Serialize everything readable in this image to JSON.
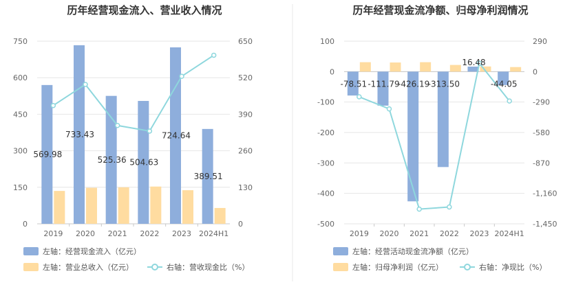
{
  "colors": {
    "bar_primary": "#8eaedc",
    "bar_secondary": "#ffdca0",
    "line": "#8ed7dd",
    "grid": "#e6e6e6",
    "divider": "#e8e8e8"
  },
  "chart_data": [
    {
      "type": "bar",
      "title": "历年经营现金流入、营业收入情况",
      "categories": [
        "2019",
        "2020",
        "2021",
        "2022",
        "2023",
        "2024H1"
      ],
      "left_axis": {
        "min": 0,
        "max": 750,
        "ticks": [
          "0",
          "150",
          "300",
          "450",
          "600",
          "750"
        ]
      },
      "right_axis": {
        "min": 0,
        "max": 650,
        "ticks": [
          "0",
          "130",
          "260",
          "390",
          "520",
          "650"
        ]
      },
      "series": [
        {
          "name": "左轴：经营现金流入（亿元）",
          "kind": "bar",
          "axis": "left",
          "color": "#8eaedc",
          "values": [
            569.98,
            733.43,
            525.36,
            504.63,
            724.64,
            389.51
          ],
          "labels": [
            "569.98",
            "733.43",
            "525.36",
            "504.63",
            "724.64",
            "389.51"
          ]
        },
        {
          "name": "左轴：营业总收入（亿元）",
          "kind": "bar",
          "axis": "left",
          "color": "#ffdca0",
          "values": [
            135,
            148,
            150,
            153,
            138,
            65
          ]
        },
        {
          "name": "右轴：营收现金比（%）",
          "kind": "line",
          "axis": "right",
          "color": "#8ed7dd",
          "values": [
            421,
            496,
            350,
            330,
            525,
            600
          ]
        }
      ],
      "legend": [
        "左轴：经营现金流入（亿元）",
        "左轴：营业总收入（亿元）",
        "右轴：营收现金比（%）"
      ]
    },
    {
      "type": "bar",
      "title": "历年经营现金流净额、归母净利润情况",
      "categories": [
        "2019",
        "2020",
        "2021",
        "2022",
        "2023",
        "2024H1"
      ],
      "left_axis": {
        "min": -500,
        "max": 100,
        "ticks": [
          "-500",
          "-400",
          "-300",
          "-200",
          "-100",
          "0",
          "100"
        ]
      },
      "right_axis": {
        "min": -1450,
        "max": 290,
        "ticks": [
          "-1,450",
          "-1,160",
          "-870",
          "-580",
          "-290",
          "0",
          "290"
        ]
      },
      "series": [
        {
          "name": "左轴：经营活动现金流净额（亿元）",
          "kind": "bar",
          "axis": "left",
          "color": "#8eaedc",
          "values": [
            -78.51,
            -111.79,
            -426.19,
            -313.5,
            16.48,
            -44.05
          ],
          "labels": [
            "-78.51",
            "-111.79",
            "-426.19",
            "-313.50",
            "16.48",
            "-44.05"
          ]
        },
        {
          "name": "左轴：归母净利润（亿元）",
          "kind": "bar",
          "axis": "left",
          "color": "#ffdca0",
          "values": [
            31,
            30,
            31,
            22,
            17,
            15
          ]
        },
        {
          "name": "右轴：净现比（%）",
          "kind": "line",
          "axis": "right",
          "color": "#8ed7dd",
          "values": [
            -240,
            -355,
            -1310,
            -1290,
            80,
            -280
          ]
        }
      ],
      "legend": [
        "左轴：经营活动现金流净额（亿元）",
        "左轴：归母净利润（亿元）",
        "右轴：净现比（%）"
      ]
    }
  ]
}
